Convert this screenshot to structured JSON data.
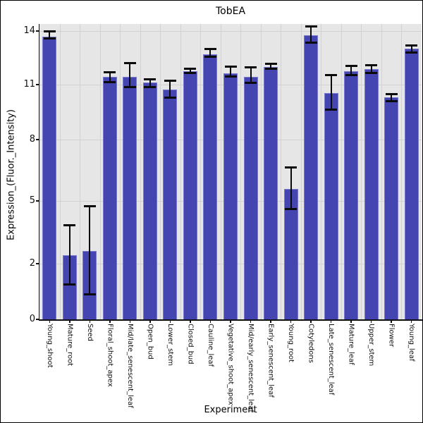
{
  "chart_data": {
    "type": "bar",
    "title": "TobEA",
    "xlabel": "Experiment",
    "ylabel": "Expression_(Fluor._Intensity)",
    "yticks": [
      0,
      2,
      5,
      8,
      11,
      14
    ],
    "ylim": [
      0,
      14.5
    ],
    "grid": true,
    "legend": false,
    "bar_color": "#4545b2",
    "bar_edge_color": "#7a7ace",
    "plot_bg_color": "#e6e6e6",
    "grid_color": "#d2d2d2",
    "error_bar_color": "#0a0a0a",
    "categories": [
      "Young_shoot",
      "Mature_root",
      "Seed",
      "Floral_shoot_apex",
      "Mid/late_senescent_leaf",
      "Open_bud",
      "Lower_stem",
      "Closed_bud",
      "Cauline_leaf",
      "Vegetative_shoot_apex",
      "Mid/early_senescent_leaf",
      "Early_senescent_leaf",
      "Young_root",
      "Cotyledons",
      "Late_senescent_leaf",
      "Mature_leaf",
      "Upper_stem",
      "Flower",
      "Young_leaf"
    ],
    "series": [
      {
        "name": "Expression",
        "values": [
          13.7,
          2.4,
          2.6,
          11.45,
          11.45,
          11.1,
          10.75,
          11.75,
          12.7,
          11.65,
          11.45,
          12.0,
          5.6,
          13.75,
          10.55,
          11.75,
          11.85,
          10.3,
          13.0
        ],
        "error_low": [
          13.6,
          1.25,
          0.9,
          11.15,
          10.85,
          10.85,
          10.3,
          11.65,
          12.55,
          11.45,
          11.1,
          11.9,
          4.6,
          13.35,
          9.65,
          11.55,
          11.65,
          10.1,
          12.8
        ],
        "error_high": [
          14.0,
          3.85,
          4.75,
          11.7,
          12.2,
          11.3,
          11.2,
          11.9,
          13.0,
          12.0,
          11.95,
          12.15,
          6.65,
          14.25,
          11.55,
          12.05,
          12.1,
          10.5,
          13.2
        ]
      }
    ]
  }
}
